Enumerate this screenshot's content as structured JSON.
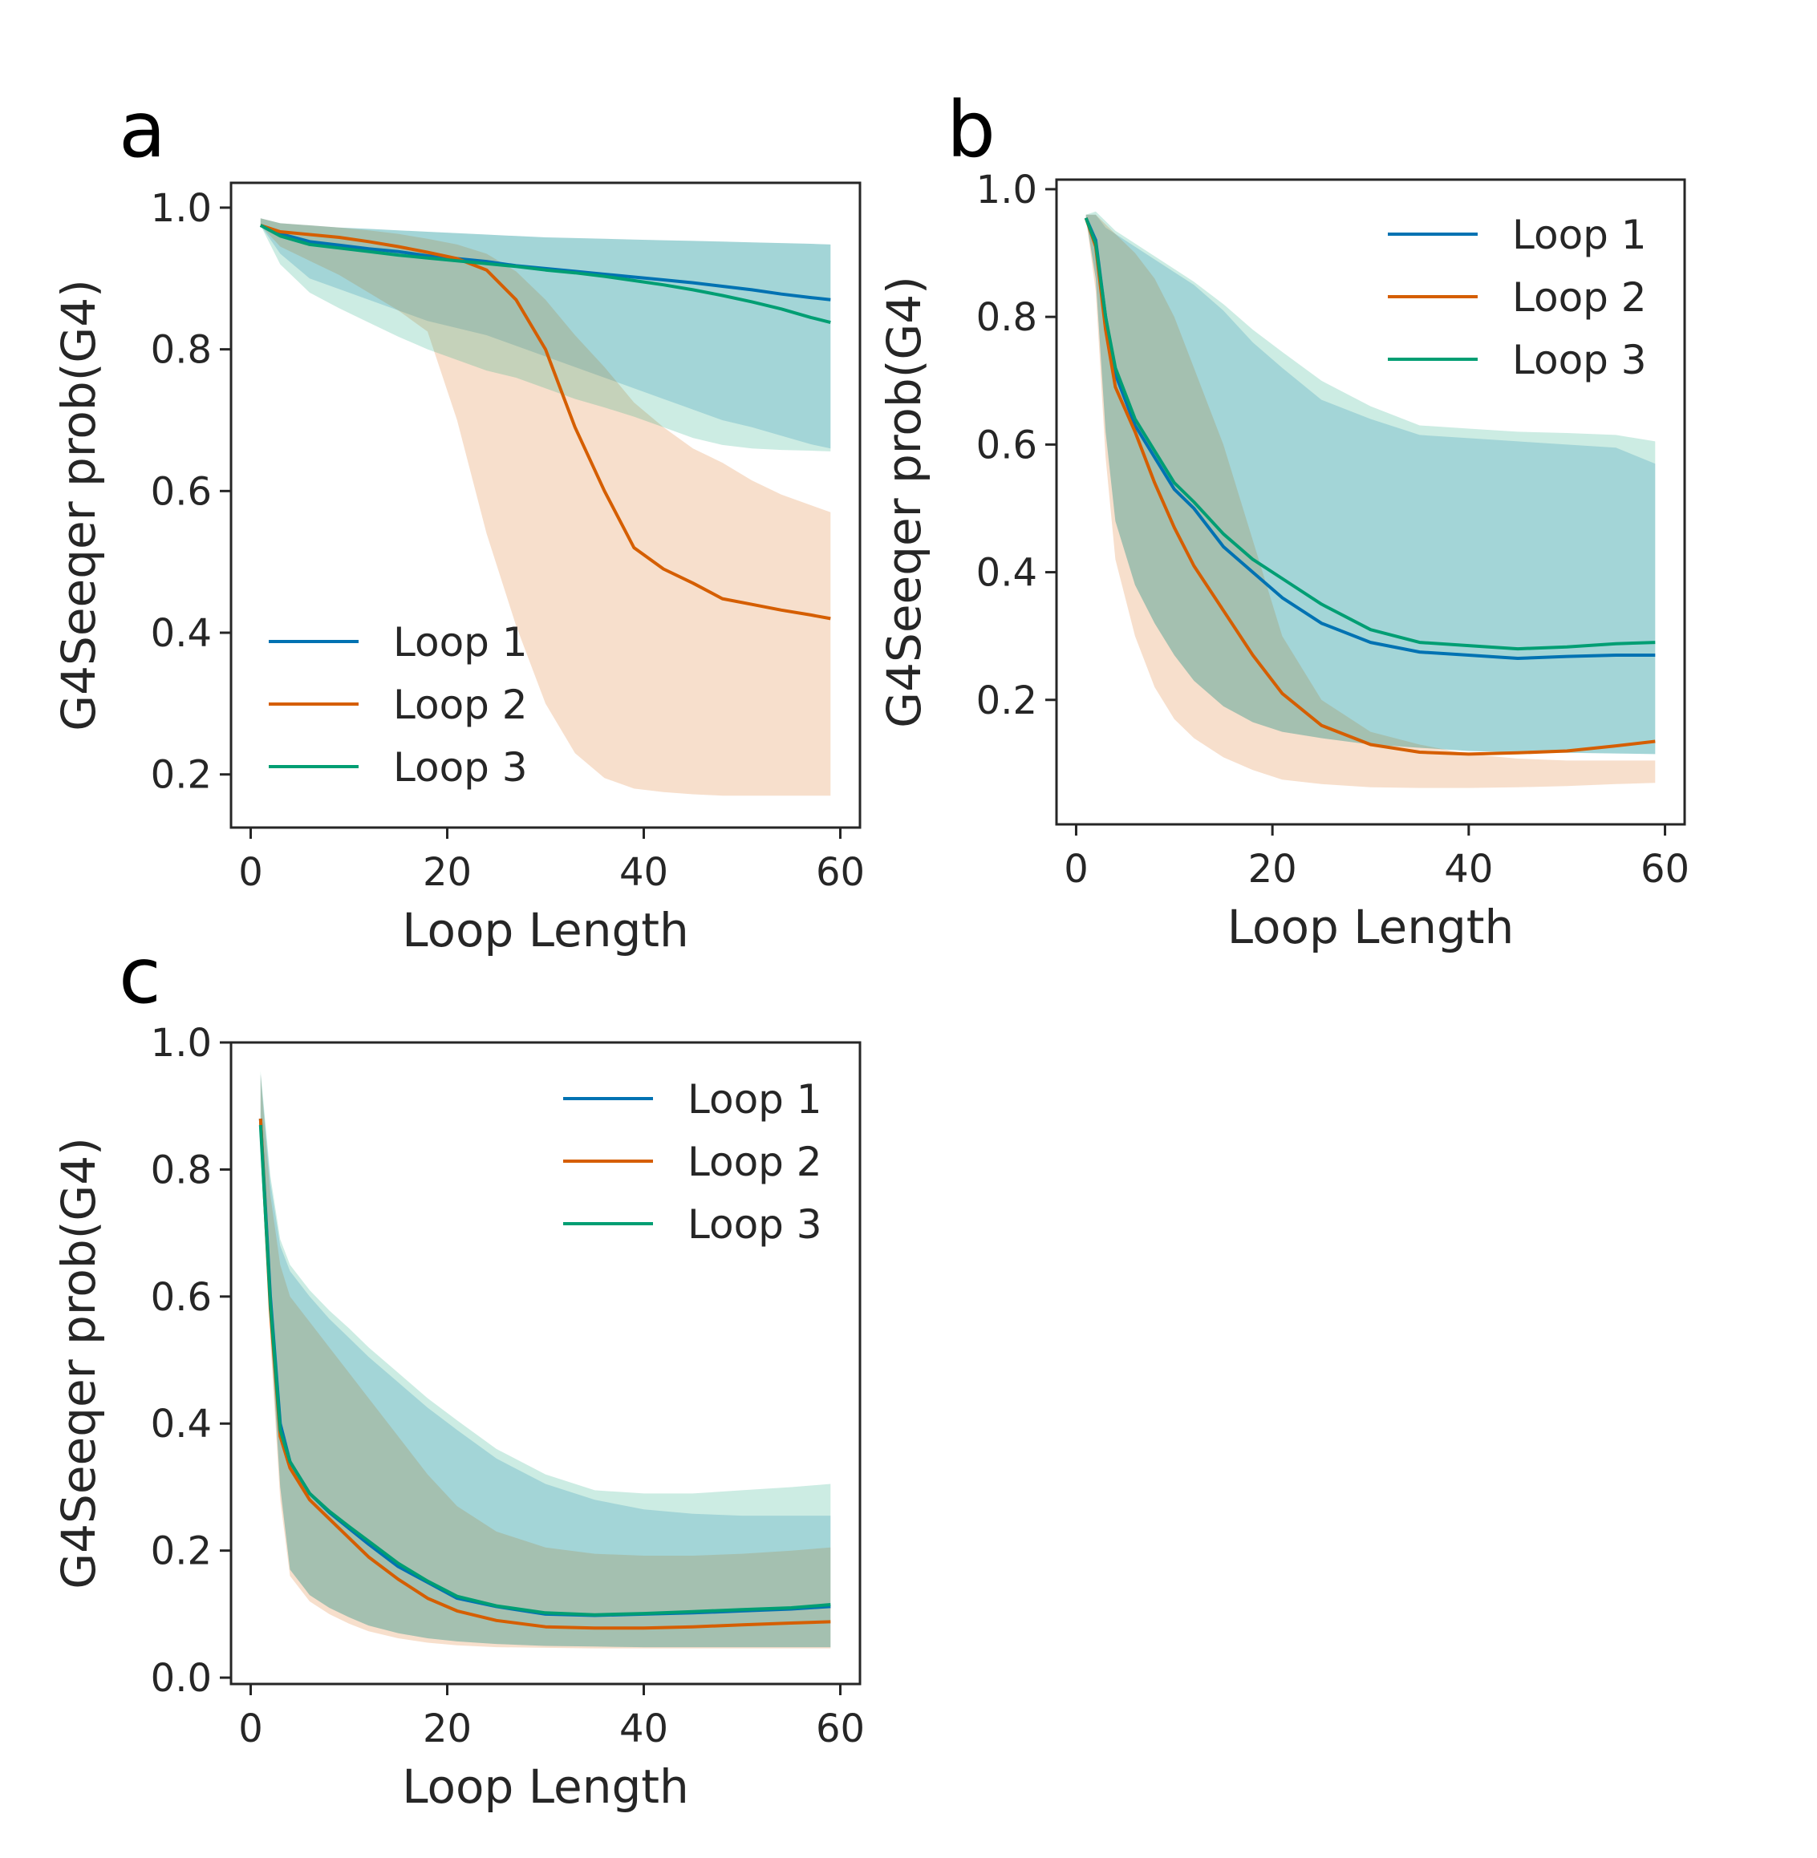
{
  "colors": {
    "loop1": "#0072b2",
    "loop2": "#d55e00",
    "loop3": "#009e73"
  },
  "chart_data": [
    {
      "panel": "a",
      "type": "line",
      "xlabel": "Loop Length",
      "ylabel": "G4Seeqer prob(G4)",
      "xlim": [
        -2,
        62
      ],
      "ylim": [
        0.125,
        1.035
      ],
      "xticks": [
        "0",
        "20",
        "40",
        "60"
      ],
      "yticks": [
        "0.2",
        "0.4",
        "0.6",
        "0.8",
        "1.0"
      ],
      "legend_position": "lower-left",
      "series": [
        {
          "name": "Loop 1",
          "x": [
            1,
            3,
            6,
            9,
            12,
            15,
            18,
            21,
            24,
            27,
            30,
            33,
            36,
            39,
            42,
            45,
            48,
            51,
            54,
            57,
            59
          ],
          "y": [
            0.975,
            0.963,
            0.952,
            0.947,
            0.942,
            0.938,
            0.932,
            0.928,
            0.924,
            0.918,
            0.914,
            0.91,
            0.906,
            0.902,
            0.898,
            0.894,
            0.889,
            0.884,
            0.878,
            0.873,
            0.87
          ],
          "lower": [
            0.975,
            0.935,
            0.9,
            0.885,
            0.87,
            0.855,
            0.84,
            0.83,
            0.82,
            0.805,
            0.79,
            0.775,
            0.76,
            0.745,
            0.73,
            0.715,
            0.7,
            0.69,
            0.678,
            0.666,
            0.66
          ],
          "upper": [
            0.985,
            0.978,
            0.975,
            0.972,
            0.97,
            0.968,
            0.966,
            0.964,
            0.962,
            0.96,
            0.958,
            0.957,
            0.956,
            0.955,
            0.954,
            0.953,
            0.952,
            0.951,
            0.95,
            0.949,
            0.948
          ]
        },
        {
          "name": "Loop 2",
          "x": [
            1,
            3,
            6,
            9,
            12,
            15,
            18,
            21,
            24,
            27,
            30,
            33,
            36,
            39,
            42,
            45,
            48,
            51,
            54,
            57,
            59
          ],
          "y": [
            0.975,
            0.966,
            0.962,
            0.958,
            0.952,
            0.945,
            0.937,
            0.928,
            0.912,
            0.87,
            0.8,
            0.69,
            0.6,
            0.52,
            0.49,
            0.47,
            0.448,
            0.44,
            0.432,
            0.425,
            0.42
          ],
          "lower": [
            0.975,
            0.945,
            0.925,
            0.905,
            0.88,
            0.855,
            0.825,
            0.7,
            0.54,
            0.41,
            0.3,
            0.23,
            0.195,
            0.18,
            0.175,
            0.172,
            0.17,
            0.17,
            0.17,
            0.17,
            0.17
          ],
          "upper": [
            0.985,
            0.978,
            0.975,
            0.972,
            0.968,
            0.963,
            0.956,
            0.948,
            0.935,
            0.91,
            0.87,
            0.82,
            0.775,
            0.725,
            0.69,
            0.66,
            0.64,
            0.615,
            0.595,
            0.58,
            0.57
          ]
        },
        {
          "name": "Loop 3",
          "x": [
            1,
            3,
            6,
            9,
            12,
            15,
            18,
            21,
            24,
            27,
            30,
            33,
            36,
            39,
            42,
            45,
            48,
            51,
            54,
            57,
            59
          ],
          "y": [
            0.975,
            0.96,
            0.948,
            0.943,
            0.938,
            0.933,
            0.929,
            0.925,
            0.921,
            0.917,
            0.912,
            0.908,
            0.903,
            0.897,
            0.891,
            0.884,
            0.876,
            0.867,
            0.857,
            0.845,
            0.838
          ],
          "lower": [
            0.975,
            0.92,
            0.88,
            0.858,
            0.838,
            0.818,
            0.8,
            0.785,
            0.77,
            0.76,
            0.745,
            0.73,
            0.718,
            0.705,
            0.69,
            0.675,
            0.665,
            0.66,
            0.658,
            0.657,
            0.656
          ],
          "upper": [
            0.985,
            0.978,
            0.975,
            0.972,
            0.97,
            0.968,
            0.966,
            0.964,
            0.962,
            0.96,
            0.958,
            0.957,
            0.956,
            0.955,
            0.954,
            0.953,
            0.952,
            0.951,
            0.95,
            0.949,
            0.948
          ]
        }
      ]
    },
    {
      "panel": "b",
      "type": "line",
      "xlabel": "Loop Length",
      "ylabel": "G4Seeqer prob(G4)",
      "xlim": [
        -2,
        62
      ],
      "ylim": [
        0.005,
        1.015
      ],
      "xticks": [
        "0",
        "20",
        "40",
        "60"
      ],
      "yticks": [
        "0.2",
        "0.4",
        "0.6",
        "0.8",
        "1.0"
      ],
      "legend_position": "upper-right",
      "series": [
        {
          "name": "Loop 1",
          "x": [
            1,
            2,
            3,
            4,
            6,
            8,
            10,
            12,
            15,
            18,
            21,
            25,
            30,
            35,
            40,
            45,
            50,
            55,
            59
          ],
          "y": [
            0.955,
            0.92,
            0.8,
            0.71,
            0.63,
            0.58,
            0.53,
            0.5,
            0.44,
            0.4,
            0.36,
            0.32,
            0.29,
            0.275,
            0.27,
            0.265,
            0.268,
            0.27,
            0.27
          ],
          "lower": [
            0.955,
            0.86,
            0.62,
            0.48,
            0.38,
            0.32,
            0.27,
            0.23,
            0.19,
            0.165,
            0.15,
            0.14,
            0.13,
            0.125,
            0.12,
            0.118,
            0.117,
            0.116,
            0.115
          ],
          "upper": [
            0.96,
            0.96,
            0.94,
            0.93,
            0.91,
            0.89,
            0.87,
            0.85,
            0.81,
            0.76,
            0.72,
            0.67,
            0.64,
            0.615,
            0.61,
            0.605,
            0.6,
            0.595,
            0.57
          ]
        },
        {
          "name": "Loop 2",
          "x": [
            1,
            2,
            3,
            4,
            6,
            8,
            10,
            12,
            15,
            18,
            21,
            25,
            30,
            35,
            40,
            45,
            50,
            55,
            59
          ],
          "y": [
            0.955,
            0.91,
            0.78,
            0.69,
            0.62,
            0.54,
            0.47,
            0.41,
            0.34,
            0.27,
            0.21,
            0.16,
            0.13,
            0.118,
            0.115,
            0.117,
            0.12,
            0.128,
            0.135
          ],
          "lower": [
            0.955,
            0.84,
            0.58,
            0.42,
            0.3,
            0.22,
            0.17,
            0.14,
            0.11,
            0.09,
            0.075,
            0.068,
            0.063,
            0.062,
            0.062,
            0.063,
            0.065,
            0.068,
            0.07
          ],
          "upper": [
            0.96,
            0.96,
            0.945,
            0.93,
            0.9,
            0.86,
            0.8,
            0.72,
            0.6,
            0.45,
            0.3,
            0.2,
            0.15,
            0.13,
            0.115,
            0.108,
            0.105,
            0.105,
            0.105
          ]
        },
        {
          "name": "Loop 3",
          "x": [
            1,
            2,
            3,
            4,
            6,
            8,
            10,
            12,
            15,
            18,
            21,
            25,
            30,
            35,
            40,
            45,
            50,
            55,
            59
          ],
          "y": [
            0.955,
            0.915,
            0.8,
            0.72,
            0.64,
            0.59,
            0.54,
            0.51,
            0.46,
            0.42,
            0.39,
            0.35,
            0.31,
            0.29,
            0.285,
            0.28,
            0.283,
            0.288,
            0.29
          ],
          "lower": [
            0.955,
            0.86,
            0.62,
            0.48,
            0.38,
            0.32,
            0.27,
            0.23,
            0.19,
            0.165,
            0.15,
            0.14,
            0.13,
            0.125,
            0.12,
            0.118,
            0.117,
            0.116,
            0.115
          ],
          "upper": [
            0.96,
            0.965,
            0.95,
            0.935,
            0.915,
            0.895,
            0.875,
            0.855,
            0.82,
            0.78,
            0.745,
            0.7,
            0.66,
            0.63,
            0.625,
            0.62,
            0.618,
            0.615,
            0.605
          ]
        }
      ]
    },
    {
      "panel": "c",
      "type": "line",
      "xlabel": "Loop Length",
      "ylabel": "G4Seeqer prob(G4)",
      "xlim": [
        -2,
        62
      ],
      "ylim": [
        -0.01,
        1.0
      ],
      "xticks": [
        "0",
        "20",
        "40",
        "60"
      ],
      "yticks": [
        "0.0",
        "0.2",
        "0.4",
        "0.6",
        "0.8",
        "1.0"
      ],
      "legend_position": "upper-right",
      "series": [
        {
          "name": "Loop 1",
          "x": [
            1,
            2,
            3,
            4,
            6,
            8,
            10,
            12,
            15,
            18,
            21,
            25,
            30,
            35,
            40,
            45,
            50,
            55,
            59
          ],
          "y": [
            0.88,
            0.6,
            0.4,
            0.34,
            0.29,
            0.26,
            0.235,
            0.21,
            0.175,
            0.15,
            0.125,
            0.112,
            0.1,
            0.098,
            0.1,
            0.102,
            0.105,
            0.108,
            0.112
          ],
          "lower": [
            0.88,
            0.55,
            0.3,
            0.17,
            0.13,
            0.11,
            0.095,
            0.082,
            0.07,
            0.062,
            0.057,
            0.053,
            0.05,
            0.049,
            0.048,
            0.048,
            0.048,
            0.048,
            0.048
          ],
          "upper": [
            0.95,
            0.78,
            0.68,
            0.64,
            0.6,
            0.565,
            0.535,
            0.505,
            0.465,
            0.425,
            0.39,
            0.345,
            0.305,
            0.28,
            0.265,
            0.258,
            0.255,
            0.255,
            0.255
          ]
        },
        {
          "name": "Loop 2",
          "x": [
            1,
            2,
            3,
            4,
            6,
            8,
            10,
            12,
            15,
            18,
            21,
            25,
            30,
            35,
            40,
            45,
            50,
            55,
            59
          ],
          "y": [
            0.88,
            0.58,
            0.38,
            0.33,
            0.28,
            0.25,
            0.22,
            0.19,
            0.155,
            0.125,
            0.105,
            0.09,
            0.08,
            0.078,
            0.078,
            0.08,
            0.083,
            0.086,
            0.088
          ],
          "lower": [
            0.88,
            0.53,
            0.28,
            0.16,
            0.12,
            0.1,
            0.085,
            0.073,
            0.062,
            0.055,
            0.051,
            0.048,
            0.047,
            0.046,
            0.046,
            0.046,
            0.046,
            0.046,
            0.046
          ],
          "upper": [
            0.95,
            0.76,
            0.65,
            0.6,
            0.56,
            0.52,
            0.48,
            0.44,
            0.38,
            0.32,
            0.27,
            0.23,
            0.205,
            0.195,
            0.192,
            0.192,
            0.195,
            0.2,
            0.205
          ]
        },
        {
          "name": "Loop 3",
          "x": [
            1,
            2,
            3,
            4,
            6,
            8,
            10,
            12,
            15,
            18,
            21,
            25,
            30,
            35,
            40,
            45,
            50,
            55,
            59
          ],
          "y": [
            0.87,
            0.59,
            0.39,
            0.34,
            0.29,
            0.262,
            0.238,
            0.215,
            0.18,
            0.152,
            0.128,
            0.113,
            0.102,
            0.099,
            0.101,
            0.104,
            0.107,
            0.11,
            0.115
          ],
          "lower": [
            0.87,
            0.55,
            0.3,
            0.17,
            0.13,
            0.11,
            0.095,
            0.082,
            0.07,
            0.062,
            0.057,
            0.053,
            0.05,
            0.049,
            0.048,
            0.048,
            0.048,
            0.048,
            0.048
          ],
          "upper": [
            0.955,
            0.79,
            0.69,
            0.65,
            0.61,
            0.578,
            0.55,
            0.52,
            0.48,
            0.44,
            0.405,
            0.36,
            0.32,
            0.295,
            0.29,
            0.29,
            0.295,
            0.3,
            0.305
          ]
        }
      ]
    }
  ]
}
